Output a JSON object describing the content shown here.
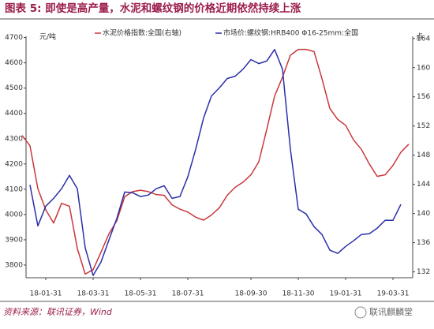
{
  "chart_data": {
    "type": "line",
    "title": "图表 5: 即使是高产量，水泥和螺纹钢的价格近期依然持续上涨",
    "y_unit": "元/吨",
    "y2_unit": "点",
    "categories": [
      null,
      null,
      null,
      "18-01-31",
      null,
      null,
      null,
      null,
      null,
      "18-03-31",
      null,
      null,
      null,
      null,
      null,
      "18-05-31",
      null,
      null,
      null,
      null,
      null,
      "18-07-31",
      null,
      null,
      null,
      null,
      null,
      null,
      null,
      "18-09-30",
      null,
      null,
      null,
      null,
      null,
      "18-11-30",
      null,
      null,
      null,
      null,
      null,
      "19-01-31",
      null,
      null,
      null,
      null,
      null,
      "19-03-31",
      null,
      null
    ],
    "series": [
      {
        "name": "水泥价格指数:全国(右轴)",
        "color": "#c8383c",
        "axis": "y2",
        "values": [
          150.7,
          149.3,
          143.4,
          140.5,
          138.7,
          141.4,
          141.0,
          135.2,
          131.7,
          132.3,
          134.7,
          137.2,
          139.0,
          142.3,
          143.0,
          143.2,
          143.0,
          142.6,
          142.5,
          141.2,
          140.6,
          140.2,
          139.5,
          139.1,
          139.8,
          140.8,
          142.5,
          143.6,
          144.3,
          145.3,
          147.1,
          151.5,
          156.1,
          158.7,
          161.7,
          162.5,
          162.5,
          162.2,
          158.5,
          154.4,
          152.9,
          152.1,
          150.1,
          148.8,
          146.8,
          145.1,
          145.3,
          146.6,
          148.4,
          149.5
        ]
      },
      {
        "name": "市场价:螺纹钢:HRB400 Φ16-25mm:全国",
        "color": "#2a2fa8",
        "values": [
          null,
          4117,
          3955,
          4033,
          4064,
          4102,
          4155,
          4102,
          3868,
          3759,
          3812,
          3899,
          3984,
          4089,
          4086,
          4071,
          4077,
          4102,
          4114,
          4064,
          4071,
          4149,
          4258,
          4382,
          4469,
          4501,
          4538,
          4547,
          4575,
          4613,
          4597,
          4607,
          4653,
          4575,
          4258,
          4021,
          4002,
          3952,
          3921,
          3859,
          3846,
          3874,
          3896,
          3921,
          3924,
          3946,
          3977,
          3977,
          4040,
          null
        ]
      }
    ],
    "ylim": [
      3750,
      4705
    ],
    "yticks": [
      3800,
      3900,
      4000,
      4100,
      4200,
      4300,
      4400,
      4500,
      4600,
      4700
    ],
    "y2lim": [
      131.2,
      164.3
    ],
    "y2ticks": [
      132,
      136,
      140,
      144,
      148,
      152,
      156,
      160,
      164
    ]
  },
  "source": "资料来源：联讯证券，Wind",
  "watermark": "联讯麒麟堂"
}
